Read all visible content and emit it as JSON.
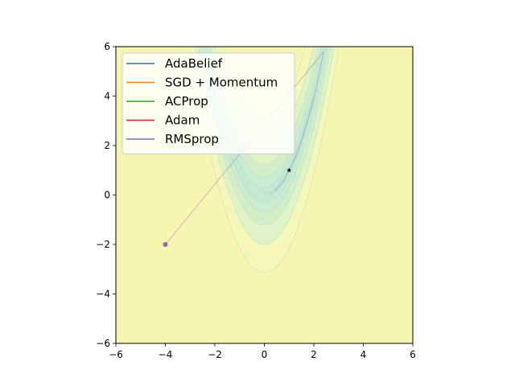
{
  "chart_data": {
    "type": "contour",
    "title": "",
    "xlabel": "",
    "ylabel": "",
    "xlim": [
      -6,
      6
    ],
    "ylim": [
      -6,
      6
    ],
    "x_ticks": [
      -6,
      -4,
      -2,
      0,
      2,
      4,
      6
    ],
    "y_ticks": [
      -6,
      -4,
      -2,
      0,
      2,
      4,
      6
    ],
    "x_tick_labels": [
      "−6",
      "−4",
      "−2",
      "0",
      "2",
      "4",
      "6"
    ],
    "y_tick_labels": [
      "−6",
      "−4",
      "−2",
      "0",
      "2",
      "4",
      "6"
    ],
    "grid": false,
    "legend_position": "upper-left",
    "contour": {
      "levels": [
        1,
        10,
        50,
        150,
        400,
        1000
      ],
      "fills": [
        "#bfe6d6",
        "#c6e9d3",
        "#cdebd1",
        "#d4eec9",
        "#e0f3c6",
        "#f4f7b8",
        "#f7f6b0"
      ]
    },
    "series": [
      {
        "name": "AdaBelief",
        "color": "#1f77b4",
        "x": [
          -4
        ],
        "y": [
          -2
        ]
      },
      {
        "name": "SGD + Momentum",
        "color": "#ff7f0e",
        "x": [
          -4
        ],
        "y": [
          -2
        ]
      },
      {
        "name": "ACProp",
        "color": "#2ca02c",
        "x": [
          -4
        ],
        "y": [
          -2
        ]
      },
      {
        "name": "Adam",
        "color": "#d62728",
        "x": [
          -4
        ],
        "y": [
          -2
        ]
      },
      {
        "name": "RMSprop",
        "color": "#9467bd",
        "x": [
          -4,
          2.4,
          2.2,
          2.0,
          1.8,
          1.6,
          1.4,
          1.2,
          1.0,
          0.8,
          0.6,
          0.4
        ],
        "y": [
          -2,
          5.8,
          4.8,
          3.9,
          3.2,
          2.5,
          1.9,
          1.4,
          1.0,
          0.6,
          0.35,
          0.15
        ]
      }
    ],
    "start_point": {
      "x": -4,
      "y": -2,
      "color": "#9467bd"
    },
    "optimum": {
      "x": 1,
      "y": 1,
      "marker": "star",
      "color": "#000000"
    }
  }
}
